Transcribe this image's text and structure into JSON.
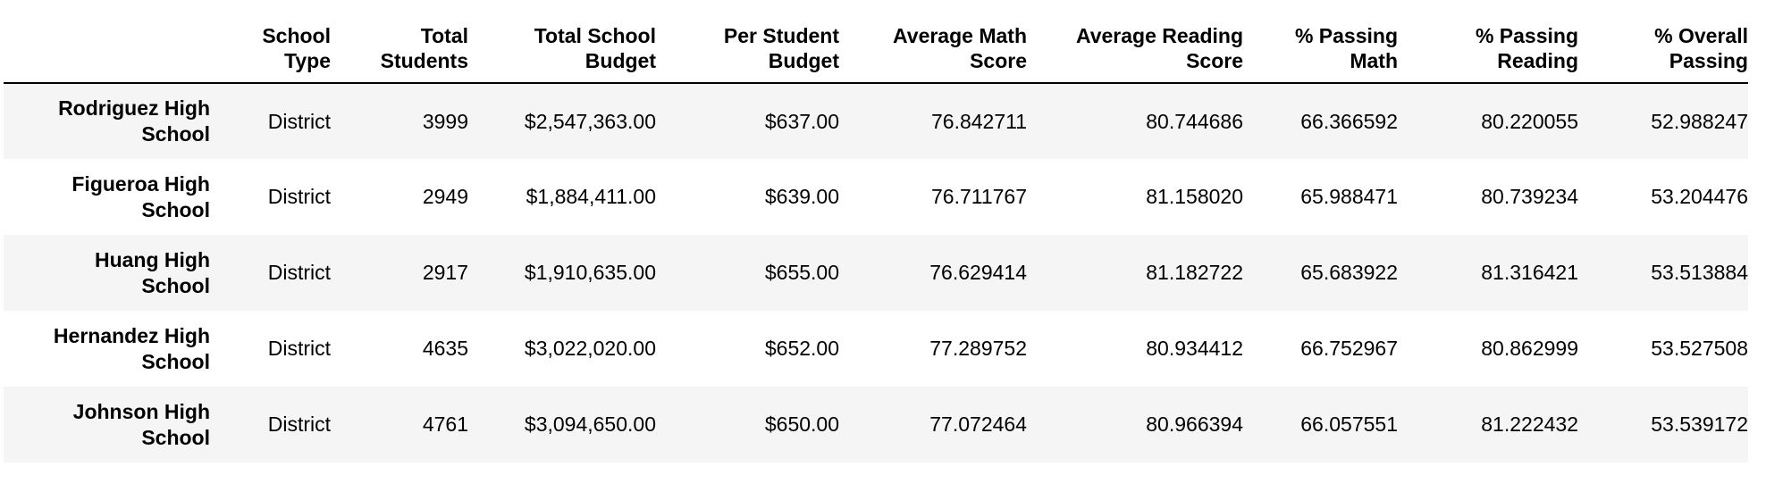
{
  "table": {
    "columns": [
      {
        "line1": "",
        "line2": ""
      },
      {
        "line1": "School",
        "line2": "Type"
      },
      {
        "line1": "Total",
        "line2": "Students"
      },
      {
        "line1": "Total School",
        "line2": "Budget"
      },
      {
        "line1": "Per Student",
        "line2": "Budget"
      },
      {
        "line1": "Average Math",
        "line2": "Score"
      },
      {
        "line1": "Average Reading",
        "line2": "Score"
      },
      {
        "line1": "% Passing",
        "line2": "Math"
      },
      {
        "line1": "% Passing",
        "line2": "Reading"
      },
      {
        "line1": "% Overall",
        "line2": "Passing"
      }
    ],
    "rows": [
      {
        "name1": "Rodriguez High",
        "name2": "School",
        "school_type": "District",
        "total_students": "3999",
        "total_budget": "$2,547,363.00",
        "per_student_budget": "$637.00",
        "avg_math": "76.842711",
        "avg_reading": "80.744686",
        "pct_math": "66.366592",
        "pct_reading": "80.220055",
        "pct_overall": "52.988247"
      },
      {
        "name1": "Figueroa High",
        "name2": "School",
        "school_type": "District",
        "total_students": "2949",
        "total_budget": "$1,884,411.00",
        "per_student_budget": "$639.00",
        "avg_math": "76.711767",
        "avg_reading": "81.158020",
        "pct_math": "65.988471",
        "pct_reading": "80.739234",
        "pct_overall": "53.204476"
      },
      {
        "name1": "Huang High",
        "name2": "School",
        "school_type": "District",
        "total_students": "2917",
        "total_budget": "$1,910,635.00",
        "per_student_budget": "$655.00",
        "avg_math": "76.629414",
        "avg_reading": "81.182722",
        "pct_math": "65.683922",
        "pct_reading": "81.316421",
        "pct_overall": "53.513884"
      },
      {
        "name1": "Hernandez High",
        "name2": "School",
        "school_type": "District",
        "total_students": "4635",
        "total_budget": "$3,022,020.00",
        "per_student_budget": "$652.00",
        "avg_math": "77.289752",
        "avg_reading": "80.934412",
        "pct_math": "66.752967",
        "pct_reading": "80.862999",
        "pct_overall": "53.527508"
      },
      {
        "name1": "Johnson High",
        "name2": "School",
        "school_type": "District",
        "total_students": "4761",
        "total_budget": "$3,094,650.00",
        "per_student_budget": "$650.00",
        "avg_math": "77.072464",
        "avg_reading": "80.966394",
        "pct_math": "66.057551",
        "pct_reading": "81.222432",
        "pct_overall": "53.539172"
      }
    ]
  }
}
